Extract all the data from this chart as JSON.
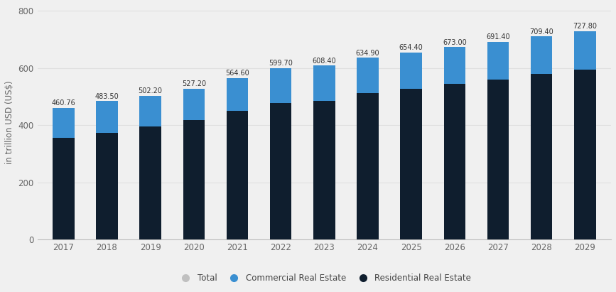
{
  "years": [
    2017,
    2018,
    2019,
    2020,
    2021,
    2022,
    2023,
    2024,
    2025,
    2026,
    2027,
    2028,
    2029
  ],
  "totals": [
    460.76,
    483.5,
    502.2,
    527.2,
    564.6,
    599.7,
    608.4,
    634.9,
    654.4,
    673.0,
    691.4,
    709.4,
    727.8
  ],
  "residential": [
    355,
    373,
    396,
    418,
    450,
    477,
    484,
    512,
    527,
    545,
    559,
    579,
    595
  ],
  "commercial_color": "#3a8fd1",
  "residential_color": "#0f1e2e",
  "background_color": "#f0f0f0",
  "ylabel": "in trillion USD (US$)",
  "yticks": [
    0,
    200,
    400,
    600,
    800
  ],
  "bar_width": 0.5,
  "label_fontsize": 7.0,
  "axis_label_fontsize": 8.5,
  "tick_fontsize": 8.5,
  "legend_fontsize": 8.5,
  "legend_items": [
    "Total",
    "Commercial Real Estate",
    "Residential Real Estate"
  ],
  "legend_colors": [
    "#c0c0c0",
    "#3a8fd1",
    "#0f1e2e"
  ]
}
